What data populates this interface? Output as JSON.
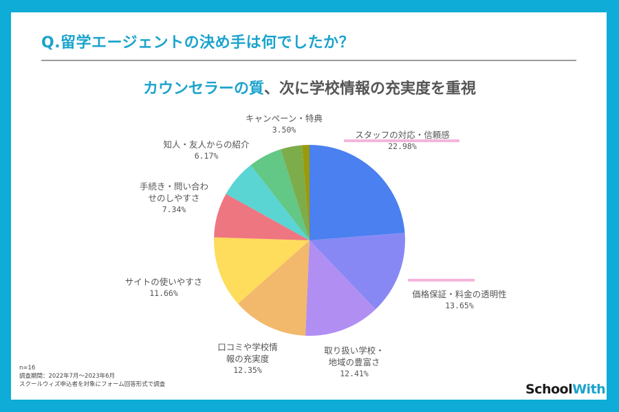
{
  "header": {
    "title": "Q.留学エージェントの決め手は何でしたか？",
    "subtitle_highlight": "カウンセラーの質",
    "subtitle_rest": "、次に学校情報の充実度を重視"
  },
  "notes": {
    "n": "n=16",
    "period": "調査期間：2022年7月〜2023年6月",
    "method": "スクールウィズ申込者を対象にフォーム回答形式で調査"
  },
  "logo": {
    "part1": "School",
    "part2": "With"
  },
  "colors": {
    "frame": "#0EACD6",
    "accent": "#1AA3CC",
    "highlight_mark": "#F4B5DC"
  },
  "labels": [
    {
      "name": "スタッフの対応・信頼感",
      "pct": "22.98%"
    },
    {
      "name": "価格保証・料金の透明性",
      "pct": "13.65%"
    },
    {
      "name": "取り扱い学校・",
      "name2": "地域の豊富さ",
      "pct": "12.41%"
    },
    {
      "name": "口コミや学校情",
      "name2": "報の充実度",
      "pct": "12.35%"
    },
    {
      "name": "サイトの使いやすさ",
      "pct": "11.66%"
    },
    {
      "name": "手続き・問い合わ",
      "name2": "せのしやすさ",
      "pct": "7.34%"
    },
    {
      "name": "知人・友人からの紹介",
      "pct": "6.17%"
    },
    {
      "name": "キャンペーン・特典",
      "pct": "3.50%"
    }
  ],
  "chart_data": {
    "type": "pie",
    "title": "Q.留学エージェントの決め手は何でしたか？",
    "subtitle": "カウンセラーの質、次に学校情報の充実度を重視",
    "start_angle": "12 o'clock, clockwise",
    "categories": [
      "スタッフの対応・信頼感",
      "価格保証・料金の透明性",
      "取り扱い学校・地域の豊富さ",
      "口コミや学校情報の充実度",
      "サイトの使いやすさ",
      "手続き・問い合わせのしやすさ",
      "知人・友人からの紹介",
      "(unlabeled green)",
      "キャンペーン・特典",
      "(unlabeled olive)"
    ],
    "values": [
      22.98,
      13.65,
      12.41,
      12.35,
      11.66,
      7.34,
      6.17,
      5.5,
      3.5,
      1.2
    ],
    "colors": [
      "#4A80F0",
      "#8888F5",
      "#B08EF2",
      "#F2B86B",
      "#FEDC5C",
      "#EE7680",
      "#5BD4D4",
      "#63C785",
      "#7DAC4A",
      "#9A9A0A"
    ],
    "n": 16
  }
}
